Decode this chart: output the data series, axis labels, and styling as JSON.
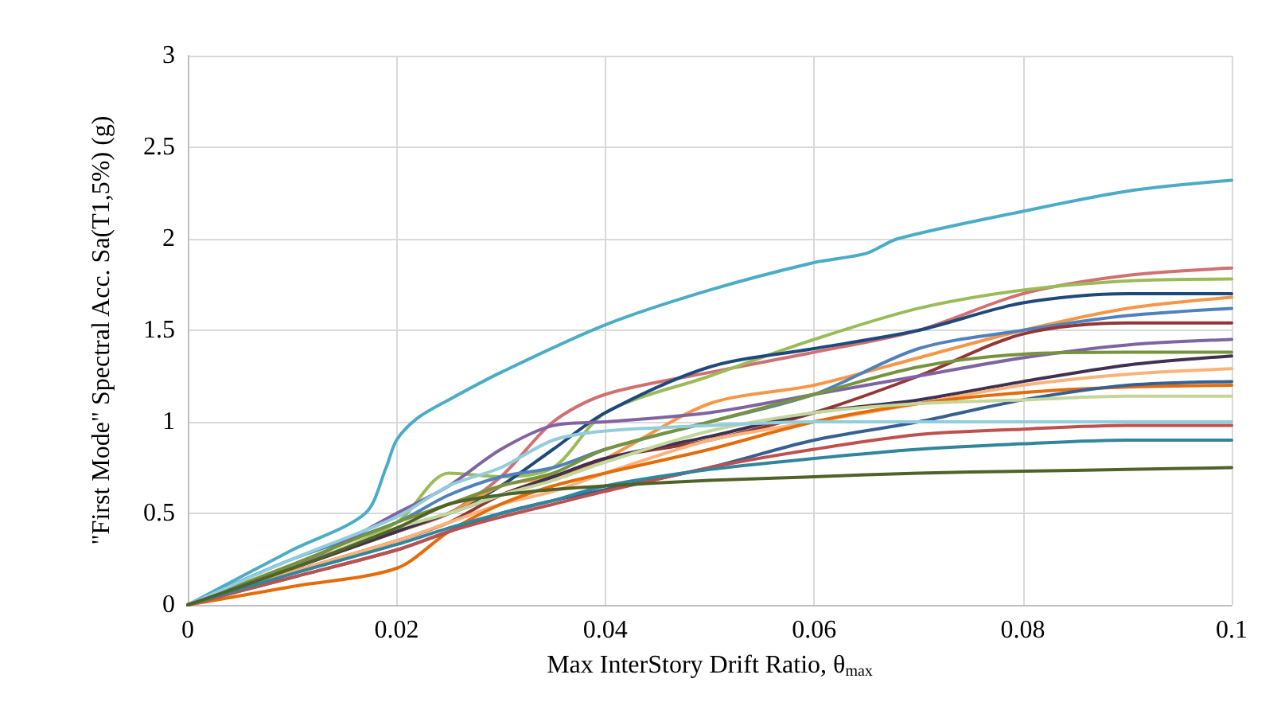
{
  "chart_data": {
    "type": "line",
    "xlabel": "Max InterStory Drift Ratio, θ$_{max}$",
    "ylabel": "\"First Mode\" Spectral Acc. Sa(T1,5%) (g)",
    "x": [
      0,
      0.01,
      0.02,
      0.025,
      0.03,
      0.035,
      0.04,
      0.05,
      0.06,
      0.07,
      0.08,
      0.09,
      0.1
    ],
    "xlim": [
      0,
      0.1
    ],
    "xticks": [
      0,
      0.02,
      0.04,
      0.06,
      0.08,
      0.1
    ],
    "ylim": [
      0,
      3
    ],
    "yticks": [
      0,
      0.5,
      1,
      1.5,
      2,
      2.5,
      3
    ],
    "grid": true,
    "marker": "none",
    "line_style": "solid",
    "series": [
      {
        "color": "#4bacc6",
        "x": [
          0,
          0.01,
          0.017,
          0.019,
          0.02,
          0.022,
          0.025,
          0.03,
          0.04,
          0.05,
          0.06,
          0.065,
          0.068,
          0.08,
          0.09,
          0.1
        ],
        "values": [
          0,
          0.3,
          0.5,
          0.75,
          0.9,
          1.02,
          1.12,
          1.27,
          1.53,
          1.72,
          1.87,
          1.92,
          2.0,
          2.15,
          2.26,
          2.32
        ]
      },
      {
        "color": "#d07070",
        "values": [
          0,
          0.2,
          0.4,
          0.5,
          0.7,
          1.0,
          1.15,
          1.27,
          1.38,
          1.5,
          1.7,
          1.8,
          1.84
        ]
      },
      {
        "color": "#9bbb59",
        "values": [
          0,
          0.2,
          0.45,
          0.72,
          0.7,
          0.75,
          1.05,
          1.25,
          1.45,
          1.62,
          1.72,
          1.77,
          1.78
        ]
      },
      {
        "color": "#1f497d",
        "values": [
          0,
          0.2,
          0.4,
          0.5,
          0.65,
          0.85,
          1.05,
          1.3,
          1.4,
          1.5,
          1.65,
          1.7,
          1.7
        ]
      },
      {
        "color": "#f79646",
        "values": [
          0,
          0.2,
          0.4,
          0.5,
          0.65,
          0.7,
          0.8,
          1.1,
          1.2,
          1.35,
          1.5,
          1.62,
          1.68
        ]
      },
      {
        "color": "#4f81bd",
        "values": [
          0,
          0.25,
          0.45,
          0.6,
          0.7,
          0.75,
          0.85,
          1.0,
          1.15,
          1.4,
          1.5,
          1.58,
          1.62
        ]
      },
      {
        "color": "#943634",
        "values": [
          0,
          0.18,
          0.35,
          0.45,
          0.6,
          0.7,
          0.8,
          0.9,
          1.05,
          1.25,
          1.48,
          1.54,
          1.54
        ]
      },
      {
        "color": "#8064a2",
        "values": [
          0,
          0.2,
          0.5,
          0.65,
          0.85,
          0.98,
          1.0,
          1.05,
          1.15,
          1.25,
          1.35,
          1.42,
          1.45
        ]
      },
      {
        "color": "#77933c",
        "values": [
          0,
          0.22,
          0.45,
          0.55,
          0.65,
          0.72,
          0.85,
          1.0,
          1.15,
          1.3,
          1.37,
          1.38,
          1.38
        ]
      },
      {
        "color": "#403151",
        "values": [
          0,
          0.2,
          0.4,
          0.5,
          0.6,
          0.7,
          0.8,
          0.92,
          1.05,
          1.12,
          1.22,
          1.31,
          1.36
        ]
      },
      {
        "color": "#fab37a",
        "values": [
          0,
          0.18,
          0.35,
          0.45,
          0.55,
          0.62,
          0.72,
          0.9,
          1.0,
          1.1,
          1.2,
          1.26,
          1.29
        ]
      },
      {
        "color": "#e46c0a",
        "values": [
          0,
          0.1,
          0.2,
          0.4,
          0.55,
          0.65,
          0.72,
          0.85,
          1.0,
          1.1,
          1.16,
          1.19,
          1.2
        ]
      },
      {
        "color": "#366092",
        "values": [
          0,
          0.15,
          0.3,
          0.4,
          0.5,
          0.57,
          0.63,
          0.75,
          0.9,
          1.0,
          1.12,
          1.2,
          1.22
        ]
      },
      {
        "color": "#c3d69b",
        "values": [
          0,
          0.2,
          0.42,
          0.5,
          0.6,
          0.68,
          0.78,
          0.95,
          1.05,
          1.1,
          1.12,
          1.14,
          1.14
        ]
      },
      {
        "color": "#92cddc",
        "values": [
          0,
          0.25,
          0.48,
          0.65,
          0.75,
          0.9,
          0.95,
          0.98,
          1.0,
          1.0,
          1.0,
          1.0,
          1.0
        ]
      },
      {
        "color": "#c0504d",
        "values": [
          0,
          0.15,
          0.3,
          0.4,
          0.48,
          0.55,
          0.62,
          0.75,
          0.85,
          0.93,
          0.96,
          0.98,
          0.98
        ]
      },
      {
        "color": "#31859c",
        "values": [
          0,
          0.17,
          0.33,
          0.42,
          0.5,
          0.57,
          0.65,
          0.74,
          0.8,
          0.85,
          0.88,
          0.9,
          0.9
        ]
      },
      {
        "color": "#4f6228",
        "values": [
          0,
          0.2,
          0.42,
          0.55,
          0.6,
          0.63,
          0.65,
          0.68,
          0.7,
          0.72,
          0.73,
          0.74,
          0.75
        ]
      }
    ]
  }
}
